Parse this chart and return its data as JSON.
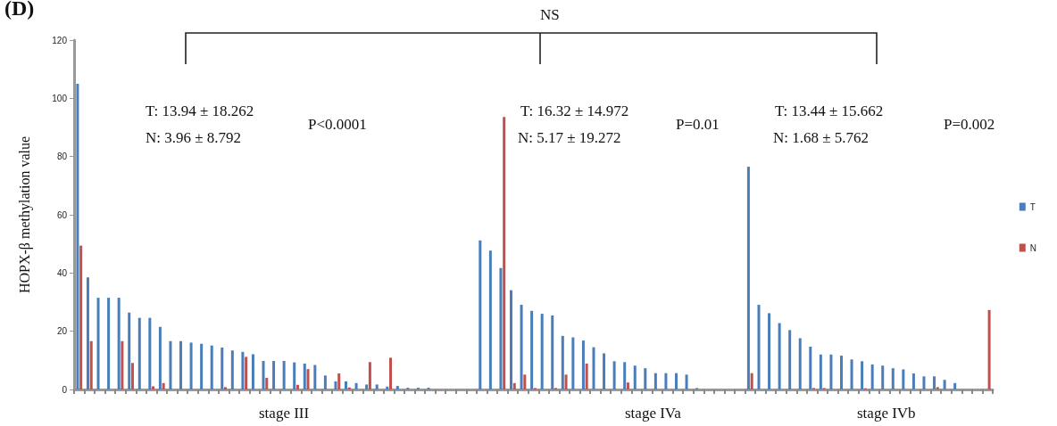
{
  "chart_data": {
    "type": "bar",
    "title": "(D)",
    "ylabel": "HOPX-β methylation value",
    "categories": [
      null,
      null,
      null,
      null,
      null,
      null,
      null,
      null,
      null,
      null,
      null,
      null,
      null,
      null,
      null,
      null,
      null,
      null,
      null,
      null,
      null,
      null,
      null,
      null,
      null,
      null,
      null,
      null,
      null,
      null,
      null,
      null,
      null,
      null,
      null,
      null,
      null,
      null,
      null,
      null,
      null,
      null,
      null,
      null,
      null,
      null,
      null,
      null,
      null,
      null,
      null,
      null,
      null,
      null,
      null,
      null,
      null,
      null,
      null,
      null,
      null,
      null,
      null,
      null,
      null,
      null,
      null,
      null,
      null,
      null,
      null,
      null,
      null,
      null,
      null,
      null,
      null,
      null,
      null,
      null,
      null,
      null,
      null,
      null,
      null,
      null,
      null,
      null,
      null
    ],
    "series": [
      {
        "name": "T",
        "color": "#4a7ebb",
        "values": [
          105,
          38.5,
          31.5,
          31.5,
          31.5,
          26.4,
          24.6,
          24.6,
          21.5,
          16.6,
          16.6,
          16.1,
          15.7,
          15.1,
          14.4,
          13.4,
          12.9,
          12.1,
          9.8,
          9.8,
          9.8,
          9.3,
          8.9,
          8.4,
          4.8,
          2.8,
          2.8,
          2.2,
          1.7,
          1.7,
          1,
          1.2,
          0.6,
          0.6,
          0.6,
          null,
          null,
          null,
          null,
          51.2,
          47.7,
          41.7,
          34.1,
          29.1,
          27,
          26,
          25.4,
          18.4,
          17.9,
          16.8,
          14.5,
          12.4,
          9.7,
          9.4,
          8.2,
          7.3,
          5.6,
          5.6,
          5.6,
          5.1,
          0.5,
          null,
          null,
          null,
          null,
          76.5,
          29.1,
          26.2,
          22.8,
          20.4,
          17.6,
          14.7,
          12,
          12,
          11.6,
          10.3,
          9.7,
          8.6,
          8.2,
          7.3,
          6.9,
          5.5,
          4.5,
          4.5,
          3.3,
          2.2,
          null,
          null,
          null
        ]
      },
      {
        "name": "N",
        "color": "#c0504d",
        "values": [
          49.4,
          16.6,
          null,
          null,
          16.6,
          9.1,
          null,
          1.1,
          2.2,
          null,
          null,
          null,
          null,
          null,
          0.8,
          null,
          11.2,
          null,
          4,
          null,
          null,
          1.6,
          7,
          null,
          null,
          5.5,
          0.7,
          null,
          9.4,
          null,
          10.9,
          null,
          null,
          null,
          null,
          null,
          null,
          null,
          null,
          null,
          null,
          93.6,
          2.2,
          5.1,
          0.5,
          null,
          0.5,
          5.1,
          null,
          8.9,
          null,
          null,
          null,
          2.4,
          null,
          null,
          null,
          null,
          null,
          null,
          null,
          null,
          null,
          null,
          null,
          5.6,
          null,
          null,
          null,
          null,
          null,
          0.5,
          0.5,
          null,
          null,
          null,
          0.4,
          null,
          null,
          null,
          null,
          null,
          null,
          0.8,
          null,
          null,
          null,
          null,
          27.3
        ]
      }
    ],
    "ylim": [
      0,
      120
    ],
    "yticks": [
      0,
      20,
      40,
      60,
      80,
      100,
      120
    ],
    "grid": false,
    "legend": "right",
    "annotations": [
      "NS",
      "T: 13.94 ± 18.262",
      "N: 3.96 ± 8.792",
      "P<0.0001",
      "T: 16.32 ± 14.972",
      "N: 5.17 ± 19.272",
      "P=0.01",
      "T: 13.44 ± 15.662",
      "N: 1.68 ± 5.762",
      "P=0.002",
      "stage III",
      "stage IVa",
      "stage IVb"
    ]
  }
}
